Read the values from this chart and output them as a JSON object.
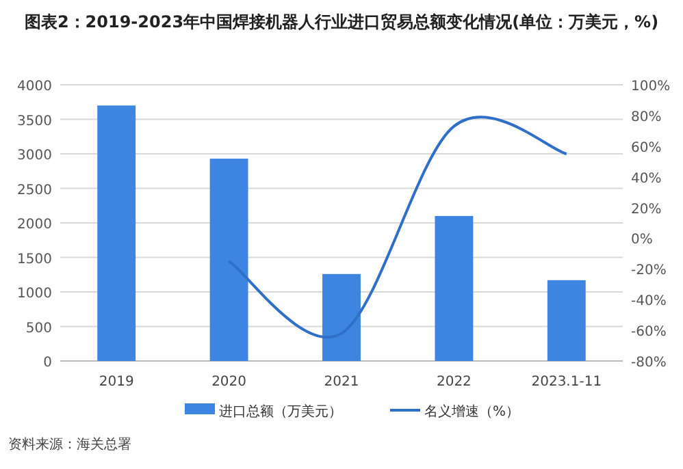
{
  "chart_data": {
    "type": "bar",
    "title": "图表2：2019-2023年中国焊接机器人行业进口贸易总额变化情况(单位：万美元，%)",
    "categories": [
      "2019",
      "2020",
      "2021",
      "2022",
      "2023.1-11"
    ],
    "series": [
      {
        "name": "进口总额（万美元）",
        "color": "#3d85e0",
        "values": [
          3700,
          2930,
          1260,
          2100,
          1170
        ]
      },
      {
        "name": "名义增速（%）",
        "type": "line",
        "axis": "y2",
        "color": "#2f6fc7",
        "values": [
          null,
          -15,
          -62,
          73,
          55
        ]
      }
    ],
    "ylim": [
      0,
      4000
    ],
    "yticks": [
      0,
      500,
      1000,
      1500,
      2000,
      2500,
      3000,
      3500,
      4000
    ],
    "y2lim": [
      -80,
      100
    ],
    "y2ticks": [
      {
        "value": -80,
        "label": "-80%"
      },
      {
        "value": -60,
        "label": "-60%"
      },
      {
        "value": -40,
        "label": "-40%"
      },
      {
        "value": -20,
        "label": "-20%"
      },
      {
        "value": 0,
        "label": "0%"
      },
      {
        "value": 20,
        "label": "20%"
      },
      {
        "value": 40,
        "label": "40%"
      },
      {
        "value": 60,
        "label": "60%"
      },
      {
        "value": 80,
        "label": "80%"
      },
      {
        "value": 100,
        "label": "100%"
      }
    ],
    "grid": "y",
    "legend": "bottom",
    "marker": "none",
    "annotations": [
      "资料来源：海关总署"
    ]
  }
}
